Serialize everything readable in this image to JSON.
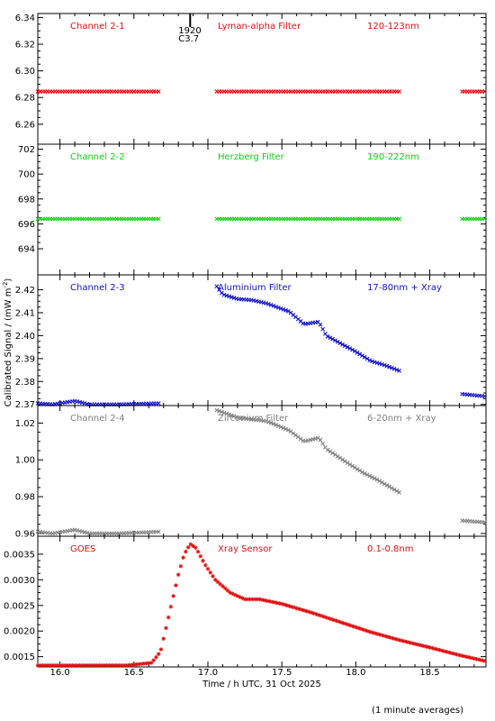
{
  "chart_data": [
    {
      "type": "scatter",
      "labels": {
        "channel": "Channel 2-1",
        "filter": "Lyman-alpha Filter",
        "band": "120-123nm"
      },
      "color": "#e01010",
      "ylim": [
        6.245,
        6.343
      ],
      "yticks": [
        6.26,
        6.28,
        6.3,
        6.32,
        6.34
      ],
      "ytick_labels": [
        "6.26",
        "6.28",
        "6.30",
        "6.32",
        "6.34"
      ],
      "segments": [
        {
          "x": [
            15.85,
            16.68
          ],
          "y": [
            6.2845,
            6.2845
          ]
        },
        {
          "x": [
            17.06,
            18.3
          ],
          "y": [
            6.2845,
            6.2845
          ]
        },
        {
          "x": [
            18.72,
            18.88
          ],
          "y": [
            6.2845,
            6.2845
          ]
        }
      ],
      "annotation": {
        "x": 16.88,
        "lines": [
          "1920",
          "C3.7"
        ]
      }
    },
    {
      "type": "scatter",
      "labels": {
        "channel": "Channel 2-2",
        "filter": "Herzberg Filter",
        "band": "190-222nm"
      },
      "color": "#10d010",
      "ylim": [
        691.9,
        702.4
      ],
      "yticks": [
        694,
        696,
        698,
        700,
        702
      ],
      "ytick_labels": [
        "694",
        "696",
        "698",
        "700",
        "702"
      ],
      "segments": [
        {
          "x": [
            15.85,
            16.68
          ],
          "y": [
            696.4,
            696.4
          ]
        },
        {
          "x": [
            17.06,
            18.3
          ],
          "y": [
            696.4,
            696.4
          ]
        },
        {
          "x": [
            18.72,
            18.88
          ],
          "y": [
            696.4,
            696.4
          ]
        }
      ]
    },
    {
      "type": "scatter",
      "labels": {
        "channel": "Channel 2-3",
        "filter": "Aluminium Filter",
        "band": "17-80nm + Xray"
      },
      "color": "#1010d0",
      "ylim": [
        2.3695,
        2.4265
      ],
      "yticks": [
        2.37,
        2.38,
        2.39,
        2.4,
        2.41,
        2.42
      ],
      "ytick_labels": [
        "2.37",
        "2.38",
        "2.39",
        "2.40",
        "2.41",
        "2.42"
      ],
      "segments": [
        {
          "x": [
            15.85,
            15.95,
            16.1,
            16.2,
            16.4,
            16.68
          ],
          "y": [
            2.3705,
            2.37,
            2.3715,
            2.37,
            2.37,
            2.3705
          ]
        },
        {
          "x": [
            17.06,
            17.1,
            17.2,
            17.3,
            17.4,
            17.55,
            17.65,
            17.7,
            17.75,
            17.8,
            17.9,
            18.0,
            18.1,
            18.2,
            18.3
          ],
          "y": [
            2.4215,
            2.418,
            2.416,
            2.4155,
            2.414,
            2.4105,
            2.405,
            2.4055,
            2.406,
            2.4,
            2.3965,
            2.393,
            2.389,
            2.387,
            2.3845
          ]
        },
        {
          "x": [
            18.72,
            18.88
          ],
          "y": [
            2.3745,
            2.3735
          ]
        }
      ]
    },
    {
      "type": "scatter",
      "labels": {
        "channel": "Channel 2-4",
        "filter": "Zirconium Filter",
        "band": "6-20nm + Xray"
      },
      "color": "#808080",
      "ylim": [
        0.9585,
        1.0295
      ],
      "yticks": [
        0.96,
        0.98,
        1.0,
        1.02
      ],
      "ytick_labels": [
        "0.96",
        "0.98",
        "1.00",
        "1.02"
      ],
      "segments": [
        {
          "x": [
            15.85,
            15.95,
            16.1,
            16.2,
            16.4,
            16.68
          ],
          "y": [
            0.961,
            0.96,
            0.962,
            0.96,
            0.96,
            0.961
          ]
        },
        {
          "x": [
            17.06,
            17.2,
            17.4,
            17.55,
            17.65,
            17.75,
            17.8,
            17.95,
            18.05,
            18.15,
            18.3
          ],
          "y": [
            1.027,
            1.023,
            1.021,
            1.016,
            1.01,
            1.012,
            1.006,
            0.998,
            0.993,
            0.989,
            0.982
          ]
        },
        {
          "x": [
            18.72,
            18.88
          ],
          "y": [
            0.967,
            0.966
          ]
        }
      ]
    },
    {
      "type": "scatter",
      "labels": {
        "channel": "GOES",
        "filter": "Xray Sensor",
        "band": "0.1-0.8nm"
      },
      "color": "#e01010",
      "ylim": [
        0.0013,
        0.00385
      ],
      "yticks": [
        0.0015,
        0.002,
        0.0025,
        0.003,
        0.0035
      ],
      "ytick_labels": [
        "0.0015",
        "0.0020",
        "0.0025",
        "0.0030",
        "0.0035"
      ],
      "marker": "star",
      "segments": [
        {
          "x": [
            15.85,
            16.0,
            16.2,
            16.45,
            16.62,
            16.68,
            16.72,
            16.76,
            16.8,
            16.84,
            16.88,
            16.92,
            16.98,
            17.05,
            17.15,
            17.25,
            17.35,
            17.5,
            17.7,
            17.9,
            18.1,
            18.3,
            18.5,
            18.7,
            18.88
          ],
          "y": [
            0.00133,
            0.00133,
            0.00133,
            0.00133,
            0.00138,
            0.0016,
            0.0021,
            0.0026,
            0.0031,
            0.0035,
            0.0037,
            0.00362,
            0.0033,
            0.003,
            0.00275,
            0.00262,
            0.00262,
            0.00253,
            0.00236,
            0.00217,
            0.00198,
            0.00182,
            0.00168,
            0.00153,
            0.00141
          ]
        }
      ]
    }
  ],
  "xaxis": {
    "xlim": [
      15.85,
      18.88
    ],
    "ticks": [
      16.0,
      16.5,
      17.0,
      17.5,
      18.0,
      18.5
    ],
    "tick_labels": [
      "16.0",
      "16.5",
      "17.0",
      "17.5",
      "18.0",
      "18.5"
    ],
    "label": "Time / h UTC, 31 Oct 2025"
  },
  "ylabel": "Calibrated Signal / (mW m",
  "ylabel_sup": "-2",
  "ylabel_close": ")",
  "footnote": "(1 minute averages)"
}
